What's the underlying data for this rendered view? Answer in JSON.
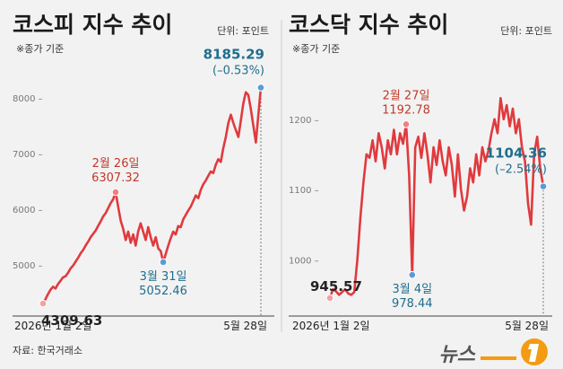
{
  "source": "자료: 한국거래소",
  "brand": "뉴스",
  "colors": {
    "line": "#e03a3e",
    "high": "#c0392b",
    "low": "#1f6e8c",
    "base": "#222222",
    "divider": "#cccccc"
  },
  "chart_data": [
    {
      "type": "line",
      "title": "코스피 지수 추이",
      "subtitle": "※종가 기준",
      "unit": "단위: 포인트",
      "ylim": [
        4150,
        8500
      ],
      "yticks": [
        5000,
        6000,
        7000,
        8000
      ],
      "ytick_labels": [
        "5000 –",
        "6000 –",
        "7000 –",
        "8000 –"
      ],
      "x_start_label": "2026년 1월 2일",
      "x_end_label": "5월 28일",
      "values": [
        4309.63,
        4390,
        4480,
        4560,
        4610,
        4580,
        4660,
        4720,
        4780,
        4800,
        4860,
        4940,
        4990,
        5060,
        5130,
        5210,
        5270,
        5350,
        5420,
        5500,
        5560,
        5620,
        5700,
        5780,
        5870,
        5930,
        6020,
        6110,
        6180,
        6307.32,
        6050,
        5800,
        5650,
        5450,
        5600,
        5400,
        5550,
        5350,
        5600,
        5750,
        5600,
        5450,
        5680,
        5500,
        5350,
        5500,
        5300,
        5250,
        5052.46,
        5200,
        5350,
        5480,
        5600,
        5550,
        5700,
        5680,
        5820,
        5900,
        5980,
        6050,
        6150,
        6250,
        6200,
        6350,
        6450,
        6520,
        6600,
        6680,
        6650,
        6800,
        6900,
        6850,
        7100,
        7300,
        7550,
        7700,
        7550,
        7420,
        7300,
        7600,
        7900,
        8100,
        8050,
        7800,
        7500,
        7200,
        7700,
        8185.29
      ],
      "annotations": [
        {
          "id": "start",
          "index": 0,
          "value": 4309.63,
          "lines": [
            "4309.63"
          ],
          "color": "base",
          "pos": "below-right"
        },
        {
          "id": "high",
          "index": 29,
          "value": 6307.32,
          "lines": [
            "2월 26일",
            "6307.32"
          ],
          "color": "high",
          "pos": "above"
        },
        {
          "id": "low",
          "index": 48,
          "value": 5052.46,
          "lines": [
            "3월 31일",
            "5052.46"
          ],
          "color": "low",
          "pos": "below"
        },
        {
          "id": "end",
          "index": 87,
          "value": 8185.29,
          "lines": [
            "8185.29",
            "(–0.53%)"
          ],
          "color": "low",
          "pos": "above-left"
        }
      ]
    },
    {
      "type": "line",
      "title": "코스닥 지수 추이",
      "subtitle": "※종가 기준",
      "unit": "단위: 포인트",
      "ylim": [
        925,
        1270
      ],
      "yticks": [
        1000,
        1100,
        1200
      ],
      "ytick_labels": [
        "1000 –",
        "1100 –",
        "1200 –"
      ],
      "x_start_label": "2026년 1월 2일",
      "x_end_label": "5월 28일",
      "values": [
        945.57,
        958,
        955,
        950,
        954,
        958,
        952,
        950,
        954,
        1000,
        1060,
        1110,
        1150,
        1145,
        1170,
        1140,
        1180,
        1160,
        1130,
        1170,
        1150,
        1185,
        1150,
        1180,
        1165,
        1192.78,
        1120,
        978.44,
        1160,
        1175,
        1145,
        1180,
        1150,
        1110,
        1160,
        1135,
        1170,
        1140,
        1120,
        1160,
        1135,
        1090,
        1150,
        1100,
        1070,
        1090,
        1130,
        1110,
        1150,
        1120,
        1160,
        1140,
        1155,
        1180,
        1200,
        1180,
        1230,
        1200,
        1220,
        1190,
        1215,
        1180,
        1200,
        1160,
        1140,
        1080,
        1050,
        1150,
        1175,
        1130,
        1104.36
      ],
      "annotations": [
        {
          "id": "start",
          "index": 0,
          "value": 945.57,
          "lines": [
            "945.57"
          ],
          "color": "base",
          "pos": "above-left"
        },
        {
          "id": "high",
          "index": 25,
          "value": 1192.78,
          "lines": [
            "2월 27일",
            "1192.78"
          ],
          "color": "high",
          "pos": "above"
        },
        {
          "id": "low",
          "index": 27,
          "value": 978.44,
          "lines": [
            "3월 4일",
            "978.44"
          ],
          "color": "low",
          "pos": "below"
        },
        {
          "id": "end",
          "index": 70,
          "value": 1104.36,
          "lines": [
            "1104.36",
            "(–2.54%)"
          ],
          "color": "low",
          "pos": "above-left"
        }
      ]
    }
  ]
}
